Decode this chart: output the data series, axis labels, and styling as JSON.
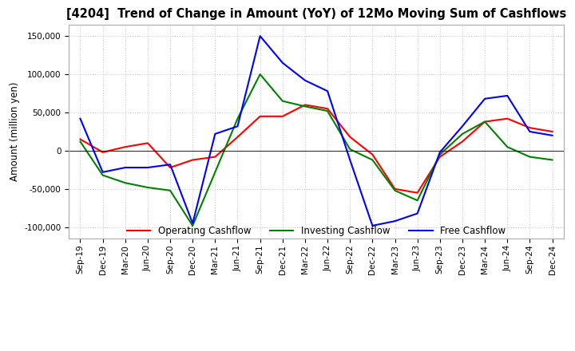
{
  "title": "[4204]  Trend of Change in Amount (YoY) of 12Mo Moving Sum of Cashflows",
  "ylabel": "Amount (million yen)",
  "ylim": [
    -115000,
    165000
  ],
  "yticks": [
    -100000,
    -50000,
    0,
    50000,
    100000,
    150000
  ],
  "background_color": "#ffffff",
  "grid_color": "#cccccc",
  "legend_labels": [
    "Operating Cashflow",
    "Investing Cashflow",
    "Free Cashflow"
  ],
  "line_colors": [
    "#ff0000",
    "#008000",
    "#0000ff"
  ],
  "dates": [
    "Sep-19",
    "Dec-19",
    "Mar-20",
    "Jun-20",
    "Sep-20",
    "Dec-20",
    "Mar-21",
    "Jun-21",
    "Sep-21",
    "Dec-21",
    "Mar-22",
    "Jun-22",
    "Sep-22",
    "Dec-22",
    "Mar-23",
    "Jun-23",
    "Sep-23",
    "Dec-23",
    "Mar-24",
    "Jun-24",
    "Sep-24",
    "Dec-24"
  ],
  "operating": [
    15000,
    -2000,
    5000,
    10000,
    -22000,
    -12000,
    -8000,
    18000,
    45000,
    45000,
    60000,
    55000,
    18000,
    -5000,
    -50000,
    -55000,
    -8000,
    12000,
    38000,
    42000,
    30000,
    25000
  ],
  "investing": [
    12000,
    -32000,
    -42000,
    -48000,
    -52000,
    -98000,
    -28000,
    42000,
    100000,
    65000,
    58000,
    52000,
    2000,
    -12000,
    -52000,
    -65000,
    -5000,
    22000,
    38000,
    5000,
    -8000,
    -12000
  ],
  "free": [
    42000,
    -28000,
    -22000,
    -22000,
    -18000,
    -95000,
    22000,
    32000,
    150000,
    115000,
    92000,
    78000,
    -12000,
    -98000,
    -92000,
    -82000,
    -2000,
    32000,
    68000,
    72000,
    25000,
    20000
  ]
}
